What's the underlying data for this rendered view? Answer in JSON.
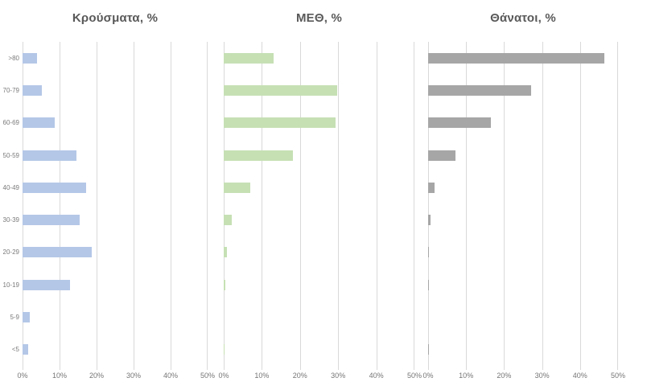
{
  "chart_data": [
    {
      "type": "bar",
      "orientation": "horizontal",
      "title": "Κρούσματα, %",
      "categories": [
        ">80",
        "70-79",
        "60-69",
        "50-59",
        "40-49",
        "30-39",
        "20-29",
        "10-19",
        "5-9",
        "<5"
      ],
      "values": [
        3.9,
        5.2,
        8.7,
        14.6,
        17.1,
        15.5,
        18.6,
        12.9,
        2.0,
        1.5
      ],
      "bar_color": "#b4c7e7",
      "xlim": [
        0,
        50
      ],
      "xticks": [
        "0%",
        "10%",
        "20%",
        "30%",
        "40%",
        "50%"
      ],
      "xlabel": "",
      "ylabel": "",
      "grid": "vertical",
      "legend": "none",
      "show_category_labels": true
    },
    {
      "type": "bar",
      "orientation": "horizontal",
      "title": "ΜΕΘ, %",
      "categories": [
        ">80",
        "70-79",
        "60-69",
        "50-59",
        "40-49",
        "30-39",
        "20-29",
        "10-19",
        "5-9",
        "<5"
      ],
      "values": [
        13.0,
        29.7,
        29.4,
        18.2,
        6.9,
        2.2,
        0.8,
        0.4,
        0.0,
        0.2
      ],
      "bar_color": "#c6e0b4",
      "xlim": [
        0,
        50
      ],
      "xticks": [
        "0%",
        "10%",
        "20%",
        "30%",
        "40%",
        "50%"
      ],
      "xlabel": "",
      "ylabel": "",
      "grid": "vertical",
      "legend": "none",
      "show_category_labels": false
    },
    {
      "type": "bar",
      "orientation": "horizontal",
      "title": "Θάνατοι, %",
      "categories": [
        ">80",
        "70-79",
        "60-69",
        "50-59",
        "40-49",
        "30-39",
        "20-29",
        "10-19",
        "5-9",
        "<5"
      ],
      "values": [
        46.4,
        27.2,
        16.6,
        7.3,
        1.8,
        0.6,
        0.2,
        0.2,
        0.0,
        0.2
      ],
      "bar_color": "#a6a6a6",
      "xlim": [
        0,
        50
      ],
      "xticks": [
        "0%",
        "10%",
        "20%",
        "30%",
        "40%",
        "50%"
      ],
      "xlabel": "",
      "ylabel": "",
      "grid": "vertical",
      "legend": "none",
      "show_category_labels": false
    }
  ],
  "colors": {
    "background": "#ffffff",
    "gridline": "#d9d9d9",
    "title_text": "#595959",
    "axis_text": "#757575",
    "category_text": "#7a7a7a"
  }
}
